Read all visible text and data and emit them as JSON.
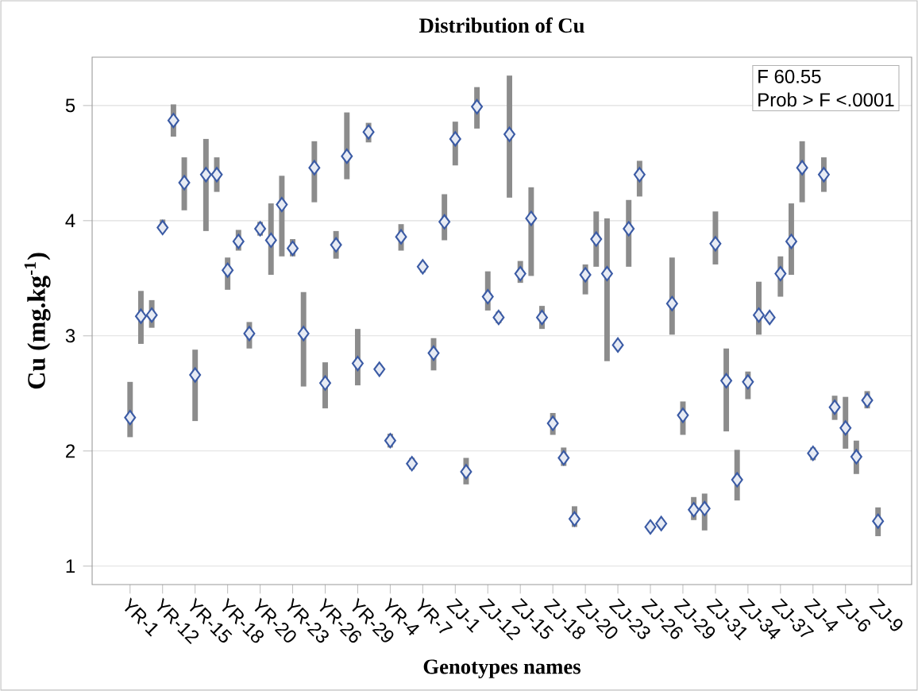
{
  "chart_data": {
    "type": "scatter",
    "title": "Distribution of Cu",
    "xlabel": "Genotypes names",
    "ylabel": "Cu (mg.kg$^{-1}$)",
    "categories": [
      "YR-1",
      null,
      null,
      "YR-12",
      null,
      null,
      "YR-15",
      null,
      null,
      "YR-18",
      null,
      null,
      "YR-20",
      null,
      null,
      "YR-23",
      null,
      null,
      "YR-26",
      null,
      null,
      "YR-29",
      null,
      null,
      "YR-4",
      null,
      null,
      "YR-7",
      null,
      null,
      "ZJ-1",
      null,
      null,
      "ZJ-12",
      null,
      null,
      "ZJ-15",
      null,
      null,
      "ZJ-18",
      null,
      null,
      "ZJ-20",
      null,
      null,
      "ZJ-23",
      null,
      null,
      "ZJ-26",
      null,
      null,
      "ZJ-29",
      null,
      null,
      "ZJ-31",
      null,
      null,
      "ZJ-34",
      null,
      null,
      "ZJ-37",
      null,
      null,
      "ZJ-4",
      null,
      null,
      "ZJ-6",
      null,
      null,
      "ZJ-9"
    ],
    "values": [
      2.29,
      3.17,
      3.18,
      3.94,
      4.87,
      4.33,
      2.66,
      4.4,
      4.4,
      3.57,
      3.82,
      3.02,
      3.93,
      3.83,
      4.14,
      3.76,
      3.02,
      4.46,
      2.59,
      3.79,
      4.56,
      2.76,
      4.77,
      2.71,
      2.09,
      3.86,
      1.89,
      3.6,
      2.85,
      3.99,
      4.71,
      1.82,
      4.99,
      3.34,
      3.16,
      4.75,
      3.54,
      4.02,
      3.16,
      2.24,
      1.94,
      1.41,
      3.53,
      3.84,
      3.54,
      2.92,
      3.93,
      4.4,
      1.34,
      1.37,
      3.28,
      2.31,
      1.49,
      1.5,
      3.8,
      2.61,
      1.75,
      2.6,
      3.18,
      3.16,
      3.54,
      3.82,
      4.46,
      1.98,
      4.4,
      2.38,
      2.2,
      1.95,
      2.44,
      1.39
    ],
    "errors": [
      [
        2.12,
        2.6
      ],
      [
        2.93,
        3.39
      ],
      [
        3.07,
        3.31
      ],
      [
        3.9,
        4.01
      ],
      [
        4.73,
        5.01
      ],
      [
        4.09,
        4.55
      ],
      [
        2.26,
        2.88
      ],
      [
        3.91,
        4.71
      ],
      [
        4.25,
        4.55
      ],
      [
        3.4,
        3.68
      ],
      [
        3.74,
        3.92
      ],
      [
        2.89,
        3.12
      ],
      [
        3.87,
        3.99
      ],
      [
        3.53,
        4.15
      ],
      [
        3.69,
        4.39
      ],
      [
        3.69,
        3.84
      ],
      [
        2.56,
        3.38
      ],
      [
        4.16,
        4.69
      ],
      [
        2.37,
        2.77
      ],
      [
        3.67,
        3.91
      ],
      [
        4.36,
        4.94
      ],
      [
        2.57,
        3.06
      ],
      [
        4.68,
        4.85
      ],
      [
        2.68,
        2.75
      ],
      [
        2.03,
        2.15
      ],
      [
        3.74,
        3.97
      ],
      [
        1.84,
        1.94
      ],
      [
        3.55,
        3.64
      ],
      [
        2.7,
        2.98
      ],
      [
        3.83,
        4.23
      ],
      [
        4.48,
        4.86
      ],
      [
        1.71,
        1.94
      ],
      [
        4.8,
        5.16
      ],
      [
        3.22,
        3.56
      ],
      [
        3.11,
        3.21
      ],
      [
        4.2,
        5.26
      ],
      [
        3.46,
        3.65
      ],
      [
        3.52,
        4.29
      ],
      [
        3.06,
        3.26
      ],
      [
        2.14,
        2.33
      ],
      [
        1.87,
        2.03
      ],
      [
        1.34,
        1.52
      ],
      [
        3.36,
        3.62
      ],
      [
        3.6,
        4.08
      ],
      [
        2.78,
        4.02
      ],
      [
        2.89,
        2.95
      ],
      [
        3.6,
        4.18
      ],
      [
        4.21,
        4.52
      ],
      [
        1.3,
        1.38
      ],
      [
        1.33,
        1.4
      ],
      [
        3.01,
        3.68
      ],
      [
        2.14,
        2.43
      ],
      [
        1.4,
        1.6
      ],
      [
        1.31,
        1.63
      ],
      [
        3.62,
        4.08
      ],
      [
        2.17,
        2.89
      ],
      [
        1.57,
        2.01
      ],
      [
        2.45,
        2.69
      ],
      [
        3.01,
        3.47
      ],
      [
        3.13,
        3.2
      ],
      [
        3.34,
        3.69
      ],
      [
        3.53,
        4.15
      ],
      [
        4.16,
        4.69
      ],
      [
        1.92,
        2.03
      ],
      [
        4.25,
        4.55
      ],
      [
        2.27,
        2.48
      ],
      [
        2.02,
        2.47
      ],
      [
        1.8,
        2.09
      ],
      [
        2.37,
        2.52
      ],
      [
        1.26,
        1.51
      ]
    ],
    "color": "#3b5ba5",
    "marker": "diamond",
    "grid": "y",
    "ylim": [
      0.84,
      5.42
    ],
    "yticks": [
      1,
      2,
      3,
      4,
      5
    ],
    "annotations": [
      "F 60.55",
      "Prob > F <.0001"
    ]
  }
}
